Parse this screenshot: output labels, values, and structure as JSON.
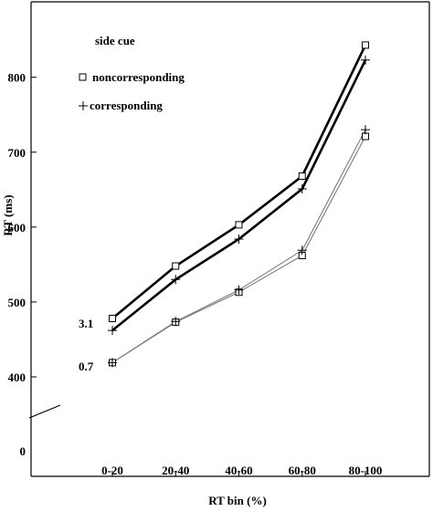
{
  "chart_data": {
    "type": "line",
    "xlabel": "RT bin (%)",
    "ylabel": "RT (ms)",
    "categories": [
      "0-20",
      "20-40",
      "40-60",
      "60-80",
      "80-100"
    ],
    "y_ticks": [
      0,
      400,
      500,
      600,
      700,
      800
    ],
    "y_break": true,
    "legend": {
      "title": "side cue",
      "placement": "top-left",
      "entries": [
        {
          "label": "noncorresponding",
          "marker": "square"
        },
        {
          "label": "corresponding",
          "marker": "plus"
        }
      ]
    },
    "series": [
      {
        "group": "3.1",
        "marker": "square",
        "line": "thick",
        "color": "#000000",
        "values": [
          478,
          548,
          603,
          668,
          843
        ]
      },
      {
        "group": "3.1",
        "marker": "plus",
        "line": "thick",
        "color": "#000000",
        "values": [
          462,
          530,
          584,
          651,
          823
        ]
      },
      {
        "group": "0.7",
        "marker": "square",
        "line": "thin",
        "color": "#7a7a7a",
        "values": [
          419,
          473,
          513,
          562,
          721
        ]
      },
      {
        "group": "0.7",
        "marker": "plus",
        "line": "thin",
        "color": "#7a7a7a",
        "values": [
          419,
          474,
          516,
          569,
          730
        ]
      }
    ],
    "annotations": [
      "3.1",
      "0.7"
    ]
  }
}
